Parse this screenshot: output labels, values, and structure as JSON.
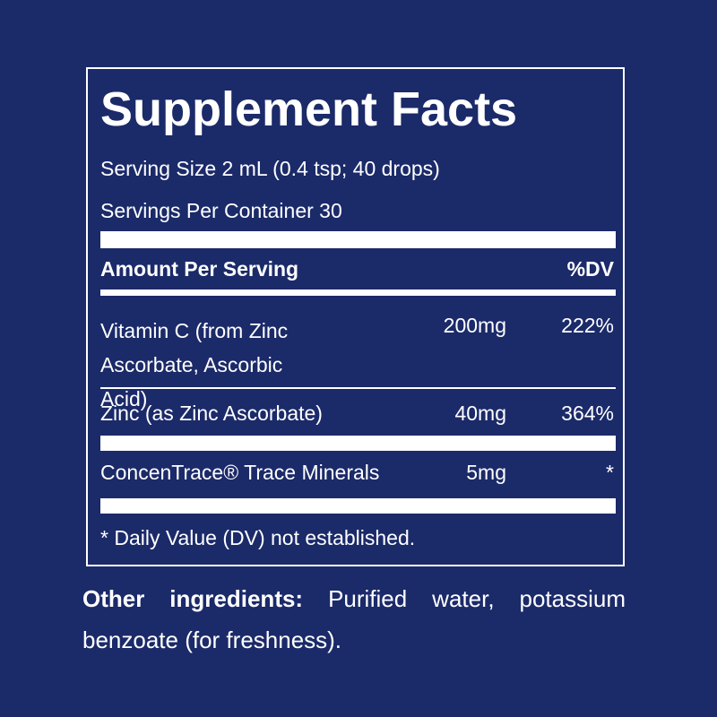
{
  "panel": {
    "title": "Supplement Facts",
    "serving_size": "Serving Size 2 mL (0.4 tsp; 40 drops)",
    "servings_per_container": "Servings Per Container 30",
    "header": {
      "amount": "Amount Per Serving",
      "dv": "%DV"
    },
    "rows": [
      {
        "name": "Vitamin C (from Zinc Ascorbate, Ascorbic Acid)",
        "amount": "200mg",
        "dv": "222%"
      },
      {
        "name": "Zinc (as Zinc Ascorbate)",
        "amount": "40mg",
        "dv": "364%"
      },
      {
        "name": "ConcenTrace® Trace Minerals",
        "amount": "5mg",
        "dv": "*"
      }
    ],
    "footnote": "* Daily Value (DV) not established."
  },
  "other_ingredients": {
    "label": "Other ingredients:",
    "text": "Purified water, potassium benzoate (for freshness)."
  }
}
